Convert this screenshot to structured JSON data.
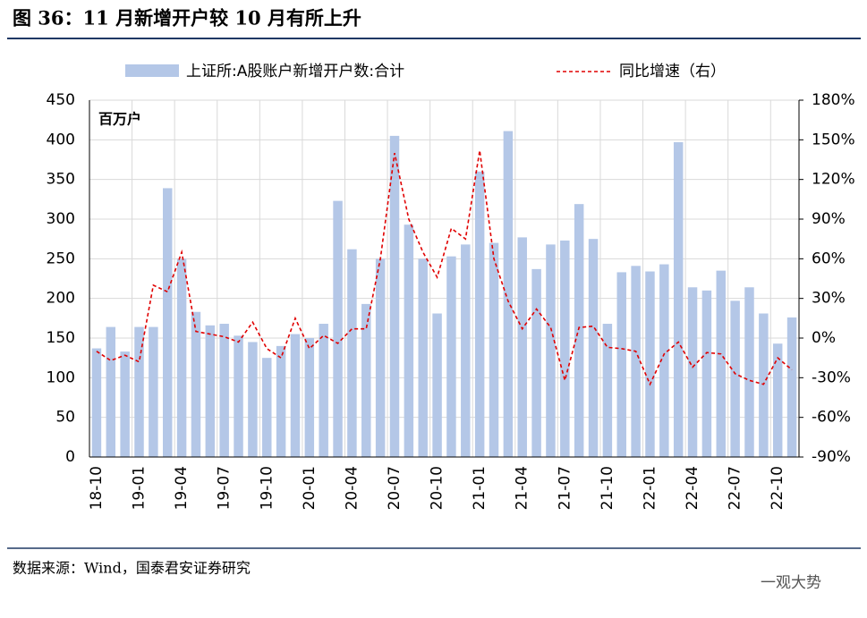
{
  "chart_data": {
    "type": "bar",
    "title": "图 36：11 月新增开户较 10 月有所上升",
    "unit_label": "百万户",
    "source": "数据来源：Wind，国泰君安证券研究",
    "watermark": "一观大势",
    "categories": [
      "18-10",
      null,
      null,
      "19-01",
      null,
      null,
      "19-04",
      null,
      null,
      "19-07",
      null,
      null,
      "19-10",
      null,
      null,
      "20-01",
      null,
      null,
      "20-04",
      null,
      null,
      "20-07",
      null,
      null,
      "20-10",
      null,
      null,
      "21-01",
      null,
      null,
      "21-04",
      null,
      null,
      "21-07",
      null,
      null,
      "21-10",
      null,
      null,
      "22-01",
      null,
      null,
      "22-04",
      null,
      null,
      "22-07",
      null,
      null,
      "22-10",
      null
    ],
    "series": [
      {
        "name": "上证所:A股账户新增开户数:合计",
        "type": "bar",
        "color": "#b4c7e7",
        "values": [
          137,
          164,
          133,
          164,
          164,
          339,
          250,
          183,
          166,
          168,
          153,
          145,
          125,
          140,
          155,
          150,
          168,
          323,
          262,
          193,
          250,
          405,
          293,
          250,
          181,
          253,
          268,
          360,
          270,
          411,
          277,
          237,
          268,
          273,
          319,
          275,
          168,
          233,
          241,
          234,
          243,
          397,
          214,
          210,
          235,
          197,
          214,
          181,
          143,
          176
        ]
      },
      {
        "name": "同比增速（右）",
        "type": "line",
        "color": "#e00000",
        "axis": "y2",
        "values": [
          -10,
          -17,
          -13,
          -18,
          40,
          35,
          65,
          5,
          3,
          1,
          -3,
          12,
          -8,
          -15,
          15,
          -8,
          2,
          -4,
          7,
          7,
          60,
          140,
          90,
          65,
          46,
          83,
          75,
          142,
          60,
          28,
          7,
          22,
          8,
          -32,
          8,
          9,
          -7,
          -8,
          -10,
          -35,
          -12,
          -3,
          -22,
          -11,
          -12,
          -27,
          -32,
          -35,
          -15,
          -24
        ]
      }
    ],
    "ylim": [
      0,
      450
    ],
    "yticks": [
      0,
      50,
      100,
      150,
      200,
      250,
      300,
      350,
      400,
      450
    ],
    "y2lim": [
      -90,
      180
    ],
    "y2ticks": [
      {
        "value": -90,
        "label": "-90%"
      },
      {
        "value": -60,
        "label": "-60%"
      },
      {
        "value": -30,
        "label": "-30%"
      },
      {
        "value": 0,
        "label": "0%"
      },
      {
        "value": 30,
        "label": "30%"
      },
      {
        "value": 60,
        "label": "60%"
      },
      {
        "value": 90,
        "label": "90%"
      },
      {
        "value": 120,
        "label": "120%"
      },
      {
        "value": 150,
        "label": "150%"
      },
      {
        "value": 180,
        "label": "180%"
      }
    ],
    "grid": true
  }
}
